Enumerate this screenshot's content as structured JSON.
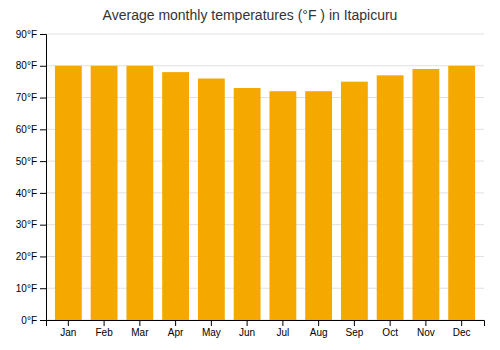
{
  "chart_data": {
    "type": "bar",
    "title": "Average monthly temperatures (°F ) in Itapicuru",
    "categories": [
      "Jan",
      "Feb",
      "Mar",
      "Apr",
      "May",
      "Jun",
      "Jul",
      "Aug",
      "Sep",
      "Oct",
      "Nov",
      "Dec"
    ],
    "values": [
      80,
      80,
      80,
      78,
      76,
      73,
      72,
      72,
      75,
      77,
      79,
      80
    ],
    "color": "#F5A800",
    "ylim": [
      0,
      90
    ],
    "yticks": [
      {
        "value": 0,
        "label": "0°F"
      },
      {
        "value": 10,
        "label": "10°F"
      },
      {
        "value": 20,
        "label": "20°F"
      },
      {
        "value": 30,
        "label": "30°F"
      },
      {
        "value": 40,
        "label": "40°F"
      },
      {
        "value": 50,
        "label": "50°F"
      },
      {
        "value": 60,
        "label": "60°F"
      },
      {
        "value": 70,
        "label": "70°F"
      },
      {
        "value": 80,
        "label": "80°F"
      },
      {
        "value": 90,
        "label": "90°F"
      }
    ],
    "grid": true
  }
}
